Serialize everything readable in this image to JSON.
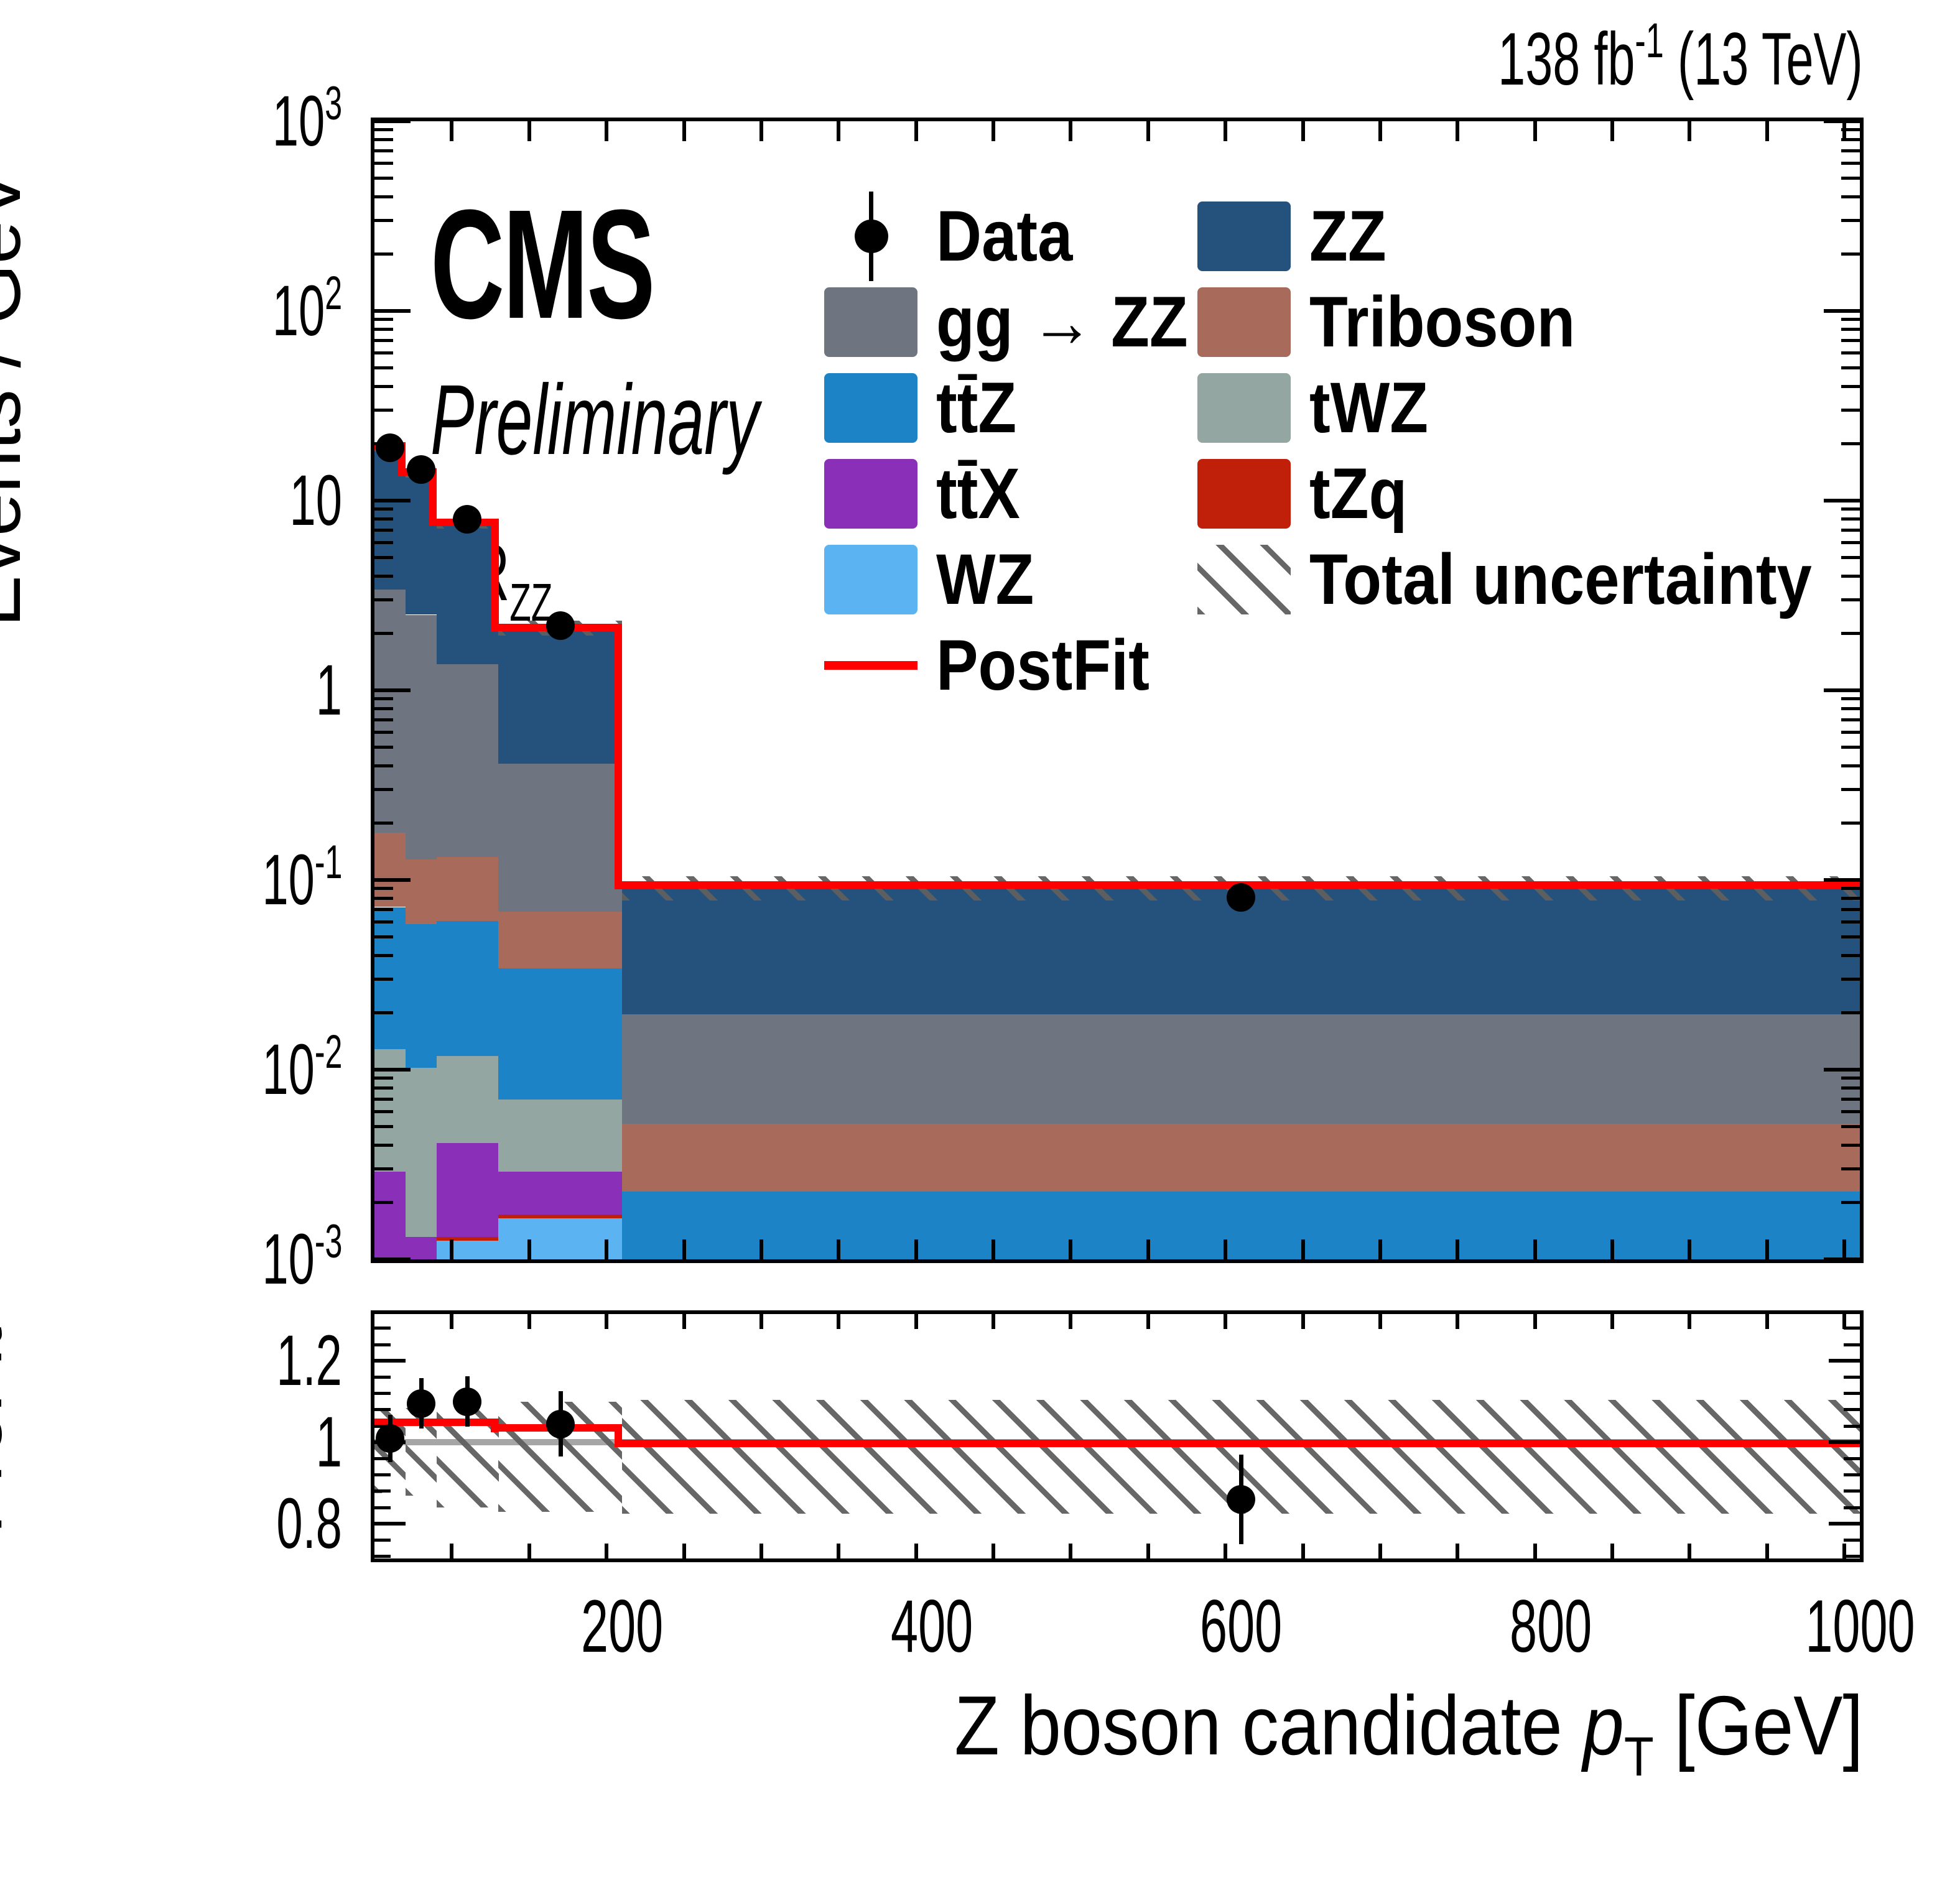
{
  "header": {
    "lumi_prefix": "138 fb",
    "lumi_sup": "-1",
    "lumi_suffix": " (13 TeV)"
  },
  "labels": {
    "experiment": "CMS",
    "status": "Preliminary",
    "region_prefix": "SR",
    "region_sub": "ZZ"
  },
  "axes": {
    "y_main_title": "Events / GeV",
    "y_ratio_title_line1": "Ratio to",
    "y_ratio_title_line2": "PreFit",
    "x_title_prefix": "Z boson candidate ",
    "x_title_var": "p",
    "x_title_var_sub": "T",
    "x_title_suffix": " [GeV]",
    "x_ticks": [
      200,
      400,
      600,
      800,
      1000
    ],
    "x_minor_step": 50,
    "y_main_tick_labels": [
      "10³",
      "10²",
      "10",
      "1",
      "10⁻¹",
      "10⁻²",
      "10⁻³"
    ],
    "y_main_tick_exps": [
      3,
      2,
      1,
      0,
      -1,
      -2,
      -3
    ],
    "ratio_tick_values": [
      0.8,
      1.0,
      1.2
    ],
    "ratio_tick_labels": [
      "0.8",
      "1",
      "1.2"
    ],
    "ratio_minor_step": 0.04
  },
  "legend": {
    "entries": [
      {
        "key": "data",
        "label": "Data",
        "type": "marker",
        "color": "#000000",
        "col": 0,
        "row": 0
      },
      {
        "key": "ggzz",
        "label": "gg → ZZ",
        "type": "box",
        "color": "#6f7580",
        "col": 0,
        "row": 1
      },
      {
        "key": "ttz",
        "label": "tt̄Z",
        "type": "box",
        "color": "#1c84c6",
        "col": 0,
        "row": 2
      },
      {
        "key": "ttx",
        "label": "tt̄X",
        "type": "box",
        "color": "#8a2fb8",
        "col": 0,
        "row": 3
      },
      {
        "key": "wz",
        "label": "WZ",
        "type": "box",
        "color": "#5cb3f2",
        "col": 0,
        "row": 4
      },
      {
        "key": "postfit",
        "label": "PostFit",
        "type": "line",
        "color": "#ff0000",
        "col": 0,
        "row": 5
      },
      {
        "key": "zz",
        "label": "ZZ",
        "type": "box",
        "color": "#24527c",
        "col": 1,
        "row": 0
      },
      {
        "key": "triboson",
        "label": "Triboson",
        "type": "box",
        "color": "#a86a5a",
        "col": 1,
        "row": 1
      },
      {
        "key": "twz",
        "label": "tWZ",
        "type": "box",
        "color": "#94a6a2",
        "col": 1,
        "row": 2
      },
      {
        "key": "tzq",
        "label": "tZq",
        "type": "box",
        "color": "#c0200a",
        "col": 1,
        "row": 3
      },
      {
        "key": "uncert",
        "label": "Total uncertainty",
        "type": "hatch",
        "color": "#666666",
        "col": 1,
        "row": 4
      }
    ]
  },
  "chart_data": {
    "type": "stacked-step-histogram-with-ratio",
    "title": "CMS Preliminary SR_ZZ, Z boson candidate pT in the ZZ signal region",
    "x_label": "Z boson candidate pT [GeV]",
    "y_label": "Events / GeV",
    "x_range": [
      40,
      1000
    ],
    "y_main_log_range": [
      0.001,
      1000
    ],
    "grid": false,
    "legend_position": "top-inside",
    "bin_edges": [
      40,
      60,
      80,
      120,
      200,
      1000
    ],
    "stack_order_bottom_to_top": [
      "wz",
      "tzq",
      "ttx",
      "twz",
      "ttz",
      "triboson",
      "ggzz",
      "zz"
    ],
    "series": [
      {
        "name": "wz",
        "label": "WZ",
        "values": [
          0.0009,
          0.0004,
          0.00125,
          0.00164,
          3e-05
        ]
      },
      {
        "name": "tzq",
        "label": "tZq",
        "values": [
          5e-05,
          4e-05,
          6e-05,
          8e-05,
          2e-05
        ]
      },
      {
        "name": "ttx",
        "label": "ttX",
        "values": [
          0.00195,
          0.00087,
          0.00279,
          0.00118,
          5e-05
        ]
      },
      {
        "name": "twz",
        "label": "tWZ",
        "values": [
          0.01,
          0.00889,
          0.0077,
          0.0041,
          0.0002
        ]
      },
      {
        "name": "ttz",
        "label": "ttZ",
        "values": [
          0.0591,
          0.0483,
          0.0489,
          0.0273,
          0.00199
        ]
      },
      {
        "name": "triboson",
        "label": "Triboson",
        "values": [
          0.105,
          0.0705,
          0.0713,
          0.0337,
          0.00291
        ]
      },
      {
        "name": "ggzz",
        "label": "gg → ZZ",
        "values": [
          3.223,
          2.371,
          1.248,
          0.342,
          0.0144
        ]
      },
      {
        "name": "zz",
        "label": "ZZ",
        "values": [
          16.1,
          11.6,
          6.32,
          1.74,
          0.0744
        ]
      }
    ],
    "postfit_total": [
      19.5,
      14.1,
      7.7,
      2.15,
      0.094
    ],
    "uncertainty_lo": [
      18.2,
      13.2,
      7.1,
      1.95,
      0.078
    ],
    "uncertainty_hi": [
      20.7,
      15.1,
      8.35,
      2.33,
      0.105
    ],
    "data_points": {
      "x": [
        50,
        70,
        100,
        160,
        600
      ],
      "y": [
        19.0,
        14.6,
        8.0,
        2.2,
        0.081
      ],
      "yerr": [
        1.0,
        0.9,
        0.5,
        0.2,
        0.009
      ]
    },
    "ratio_panel": {
      "y_label": "Ratio to PreFit",
      "y_range": [
        0.715,
        1.315
      ],
      "prefit_reference": 1.0,
      "postfit_over_prefit": [
        1.05,
        1.05,
        1.05,
        1.035,
        0.997
      ],
      "band_lo": [
        0.875,
        0.87,
        0.84,
        0.83,
        0.825
      ],
      "band_hi": [
        1.08,
        1.085,
        1.095,
        1.1,
        1.105
      ],
      "points": {
        "x": [
          50,
          70,
          100,
          160,
          600
        ],
        "y": [
          1.01,
          1.095,
          1.1,
          1.045,
          0.86
        ],
        "yerr": [
          0.058,
          0.062,
          0.062,
          0.08,
          0.11
        ]
      }
    },
    "colors": {
      "zz": "#24527c",
      "ggzz": "#6f7580",
      "triboson": "#a86a5a",
      "ttz": "#1c84c6",
      "twz": "#94a6a2",
      "ttx": "#8a2fb8",
      "tzq": "#c0200a",
      "wz": "#5cb3f2",
      "postfit": "#ff0000",
      "prefit_line": "#a6a6a6",
      "uncertainty_hatch": "#666666",
      "data": "#000000"
    }
  }
}
